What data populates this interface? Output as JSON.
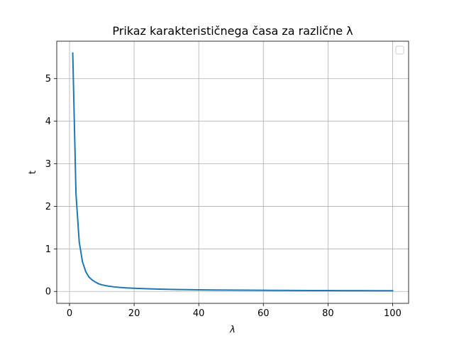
{
  "chart_data": {
    "type": "line",
    "title": "Prikaz karakterističnega časa za različne λ",
    "xlabel": "λ",
    "ylabel": "t",
    "xlim": [
      -3.95,
      104.95
    ],
    "ylim": [
      -0.28,
      5.88
    ],
    "xticks": [
      "0",
      "20",
      "40",
      "60",
      "80",
      "100"
    ],
    "yticks": [
      "0",
      "1",
      "2",
      "3",
      "4",
      "5"
    ],
    "grid": true,
    "legend": {
      "placement": "top-right",
      "entries": []
    },
    "series": [
      {
        "color": "#1f77b4",
        "x": [
          1,
          2,
          3,
          4,
          5,
          6,
          7,
          8,
          9,
          10,
          12,
          14,
          16,
          18,
          20,
          25,
          30,
          35,
          40,
          45,
          50,
          55,
          60,
          65,
          70,
          75,
          80,
          85,
          90,
          95,
          100
        ],
        "y": [
          5.6,
          2.3,
          1.17,
          0.7,
          0.47,
          0.34,
          0.27,
          0.22,
          0.18,
          0.155,
          0.125,
          0.105,
          0.092,
          0.082,
          0.074,
          0.06,
          0.05,
          0.043,
          0.038,
          0.034,
          0.031,
          0.028,
          0.026,
          0.024,
          0.022,
          0.021,
          0.02,
          0.019,
          0.018,
          0.017,
          0.016
        ]
      }
    ]
  }
}
